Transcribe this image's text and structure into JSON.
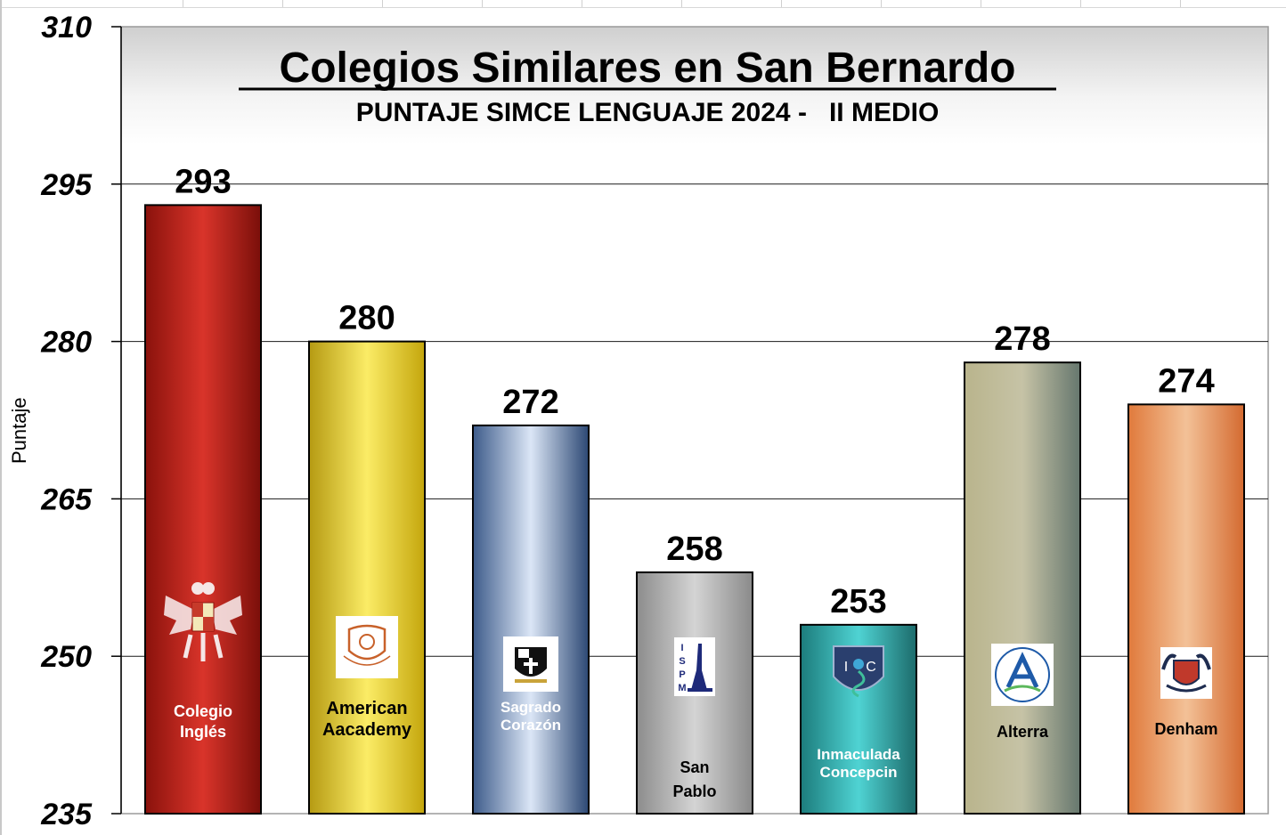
{
  "chart_data": {
    "type": "bar",
    "title": "Colegios Similares en San Bernardo",
    "subtitle": "PUNTAJE SIMCE LENGUAJE 2024 -   II MEDIO",
    "ylabel": "Puntaje",
    "xlabel": "",
    "ylim": [
      235,
      310
    ],
    "yticks": [
      235,
      250,
      265,
      280,
      295,
      310
    ],
    "grid": true,
    "categories": [
      "Colegio Inglés",
      "American Aacademy",
      "Sagrado Corazón",
      "San Pablo",
      "Inmaculada Concepcin",
      "Alterra",
      "Denham"
    ],
    "values": [
      293,
      280,
      272,
      258,
      253,
      278,
      274
    ],
    "bar_labels": [
      [
        "Colegio",
        "Inglés"
      ],
      [
        "American",
        "Aacademy"
      ],
      [
        "Sagrado",
        "Corazón"
      ],
      [
        "San",
        "Pablo"
      ],
      [
        "Inmaculada",
        "Concepcin"
      ],
      [
        "Alterra"
      ],
      [
        "Denham"
      ]
    ],
    "bar_colors": [
      [
        "#8a120c",
        "#d9342a",
        "#7a0f0a"
      ],
      [
        "#b59a12",
        "#fbec66",
        "#c4a60c"
      ],
      [
        "#3d5b8a",
        "#dbe6f6",
        "#2c4874"
      ],
      [
        "#8c8c8c",
        "#d4d4d4",
        "#8a8a8a"
      ],
      [
        "#1c7c7c",
        "#4fd3d3",
        "#1c6b6b"
      ],
      [
        "#b9b48c",
        "#c6c3a6",
        "#66776e"
      ],
      [
        "#e07a3c",
        "#f3c197",
        "#d46a30"
      ]
    ],
    "label_colors": [
      "#ffffff",
      "#000000",
      "#ffffff",
      "#000000",
      "#ffffff",
      "#000000",
      "#000000"
    ],
    "logo_icons": [
      "eagle-crest-icon",
      "american-academy-crest-icon",
      "sagrado-corazon-shield-icon",
      "ispm-monument-icon",
      "ic-crest-icon",
      "alterra-a-logo-icon",
      "denham-crest-icon"
    ]
  }
}
